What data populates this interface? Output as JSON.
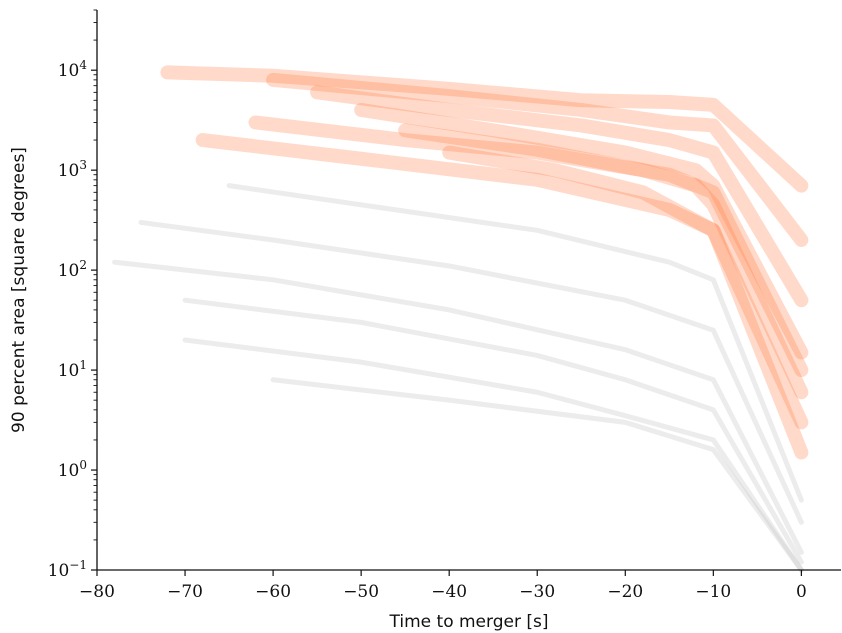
{
  "chart_data": {
    "type": "line",
    "title": "",
    "xlabel": "Time to merger [s]",
    "ylabel": "90 percent area [square degrees]",
    "xlim": [
      -80,
      4.5
    ],
    "ylim": [
      0.1,
      40000
    ],
    "yscale": "log",
    "grid": false,
    "legend": "none",
    "x_ticks": [
      -80,
      -70,
      -60,
      -50,
      -40,
      -30,
      -20,
      -10,
      0
    ],
    "x_tick_labels": [
      "−80",
      "−70",
      "−60",
      "−50",
      "−40",
      "−30",
      "−20",
      "−10",
      "0"
    ],
    "y_ticks": [
      0.1,
      1,
      10,
      100,
      1000,
      10000
    ],
    "y_tick_labels": [
      {
        "base": "10",
        "exp": "−1"
      },
      {
        "base": "10",
        "exp": "0"
      },
      {
        "base": "10",
        "exp": "1"
      },
      {
        "base": "10",
        "exp": "2"
      },
      {
        "base": "10",
        "exp": "3"
      },
      {
        "base": "10",
        "exp": "4"
      }
    ],
    "colors": {
      "high": "#ff7a40",
      "low": "#c8c8c8"
    },
    "series": [
      {
        "x": [
          -72,
          -60,
          -40,
          -25,
          -15,
          -10,
          0
        ],
        "y": [
          9500,
          8800,
          6500,
          5000,
          4800,
          4500,
          700
        ]
      },
      {
        "x": [
          -60,
          -40,
          -25,
          -15,
          -10,
          0
        ],
        "y": [
          8000,
          5500,
          4000,
          3000,
          2800,
          200
        ]
      },
      {
        "x": [
          -55,
          -40,
          -25,
          -15,
          -10,
          0
        ],
        "y": [
          6000,
          4000,
          2800,
          2000,
          1500,
          50
        ]
      },
      {
        "x": [
          -50,
          -35,
          -20,
          -12,
          -10,
          0
        ],
        "y": [
          4000,
          2500,
          1500,
          1000,
          700,
          15
        ]
      },
      {
        "x": [
          -45,
          -30,
          -18,
          -12,
          -10,
          0
        ],
        "y": [
          2500,
          1600,
          1000,
          700,
          450,
          6
        ]
      },
      {
        "x": [
          -40,
          -28,
          -18,
          -10,
          0
        ],
        "y": [
          1500,
          1000,
          600,
          250,
          3
        ]
      },
      {
        "x": [
          -62,
          -45,
          -30,
          -15,
          -10,
          0
        ],
        "y": [
          3000,
          2000,
          1500,
          900,
          600,
          10
        ]
      },
      {
        "x": [
          -68,
          -50,
          -30,
          -15,
          -10,
          0
        ],
        "y": [
          2000,
          1300,
          800,
          400,
          250,
          1.5
        ]
      },
      {
        "x": [
          -65,
          -50,
          -30,
          -15,
          -10,
          0
        ],
        "y": [
          700,
          450,
          250,
          120,
          80,
          0.5
        ]
      },
      {
        "x": [
          -75,
          -60,
          -40,
          -20,
          -10,
          0
        ],
        "y": [
          300,
          200,
          110,
          50,
          25,
          0.3
        ]
      },
      {
        "x": [
          -78,
          -60,
          -40,
          -20,
          -10,
          0
        ],
        "y": [
          120,
          80,
          40,
          16,
          8,
          0.15
        ]
      },
      {
        "x": [
          -70,
          -50,
          -30,
          -20,
          -10,
          0
        ],
        "y": [
          50,
          30,
          14,
          8,
          4,
          0.12
        ]
      },
      {
        "x": [
          -70,
          -50,
          -30,
          -20,
          -10,
          0
        ],
        "y": [
          20,
          12,
          6,
          3.5,
          2,
          0.1
        ]
      },
      {
        "x": [
          -60,
          -40,
          -20,
          -10,
          0
        ],
        "y": [
          8,
          5,
          3,
          1.6,
          0.1
        ]
      }
    ]
  }
}
